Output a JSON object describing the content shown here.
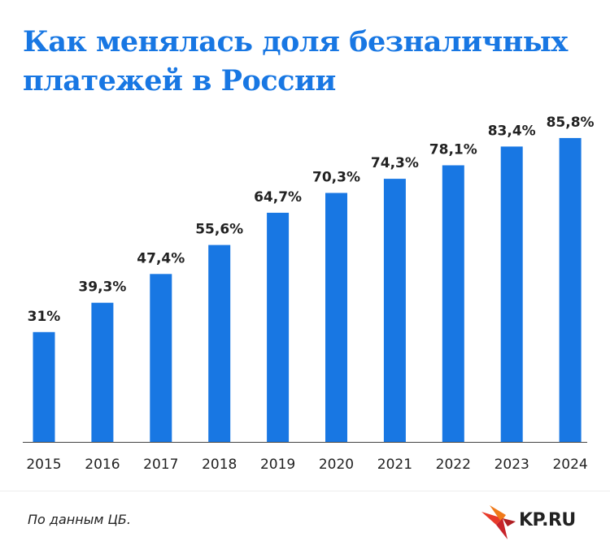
{
  "title": {
    "line1": "Как менялась доля безналичных",
    "line2": "платежей в России"
  },
  "source": "По данным ЦБ.",
  "logo": {
    "text": "KP.RU",
    "icon": "kp-bird-logo"
  },
  "colors": {
    "accent": "#1877e3",
    "text": "#222222",
    "axis": "#444444"
  },
  "chart_data": {
    "type": "bar",
    "categories": [
      "2015",
      "2016",
      "2017",
      "2018",
      "2019",
      "2020",
      "2021",
      "2022",
      "2023",
      "2024"
    ],
    "values": [
      31,
      39.3,
      47.4,
      55.6,
      64.7,
      70.3,
      74.3,
      78.1,
      83.4,
      85.8
    ],
    "value_labels": [
      "31%",
      "39,3%",
      "47,4%",
      "55,6%",
      "64,7%",
      "70,3%",
      "74,3%",
      "78,1%",
      "83,4%",
      "85,8%"
    ],
    "unit": "%",
    "ylim": [
      0,
      100
    ],
    "grid": false
  }
}
